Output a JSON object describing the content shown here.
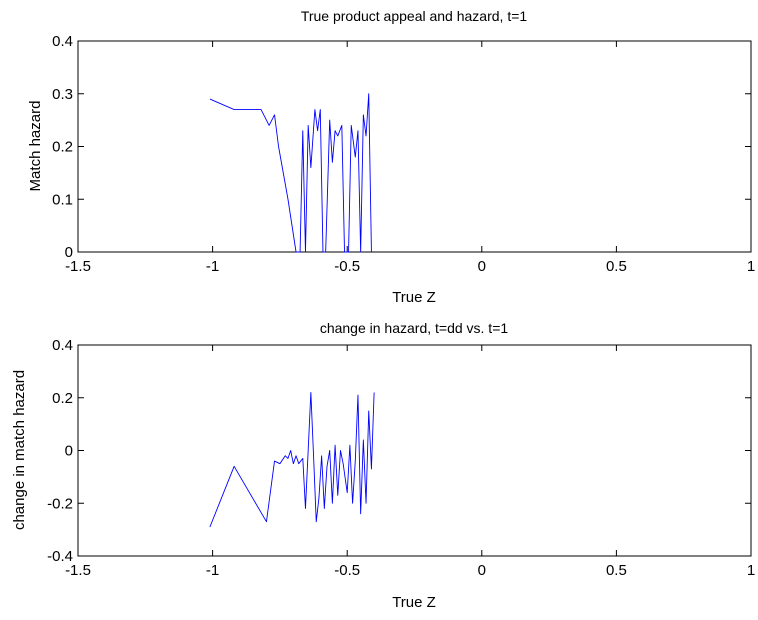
{
  "chart_data": [
    {
      "type": "line",
      "title": "True product appeal and hazard, t=1",
      "xlabel": "True Z",
      "ylabel": "Match hazard",
      "xlim": [
        -1.5,
        1
      ],
      "ylim": [
        0,
        0.4
      ],
      "xticks": [
        "-1.5",
        "-1",
        "-0.5",
        "0",
        "0.5",
        "1"
      ],
      "yticks": [
        "0",
        "0.1",
        "0.2",
        "0.3",
        "0.4"
      ],
      "grid": false,
      "series": [
        {
          "color": "#0000ff",
          "points": [
            [
              -1.01,
              0.29
            ],
            [
              -0.92,
              0.27
            ],
            [
              -0.82,
              0.27
            ],
            [
              -0.79,
              0.24
            ],
            [
              -0.77,
              0.26
            ],
            [
              -0.755,
              0.2
            ],
            [
              -0.72,
              0.1
            ],
            [
              -0.69,
              0.0
            ],
            [
              -0.675,
              0.0
            ],
            [
              -0.665,
              0.23
            ],
            [
              -0.655,
              0.0
            ],
            [
              -0.645,
              0.24
            ],
            [
              -0.635,
              0.16
            ],
            [
              -0.62,
              0.27
            ],
            [
              -0.61,
              0.23
            ],
            [
              -0.6,
              0.27
            ],
            [
              -0.59,
              0.0
            ],
            [
              -0.58,
              0.0
            ],
            [
              -0.565,
              0.25
            ],
            [
              -0.555,
              0.17
            ],
            [
              -0.545,
              0.23
            ],
            [
              -0.535,
              0.22
            ],
            [
              -0.52,
              0.24
            ],
            [
              -0.51,
              0.0
            ],
            [
              -0.495,
              0.0
            ],
            [
              -0.485,
              0.24
            ],
            [
              -0.47,
              0.18
            ],
            [
              -0.46,
              0.23
            ],
            [
              -0.45,
              0.0
            ],
            [
              -0.44,
              0.26
            ],
            [
              -0.43,
              0.22
            ],
            [
              -0.42,
              0.3
            ],
            [
              -0.41,
              0.0
            ]
          ]
        }
      ]
    },
    {
      "type": "line",
      "title": "change in hazard, t=dd vs. t=1",
      "xlabel": "True Z",
      "ylabel": "change in match hazard",
      "xlim": [
        -1.5,
        1
      ],
      "ylim": [
        -0.4,
        0.4
      ],
      "xticks": [
        "-1.5",
        "-1",
        "-0.5",
        "0",
        "0.5",
        "1"
      ],
      "yticks": [
        "-0.4",
        "-0.2",
        "0",
        "0.2",
        "0.4"
      ],
      "grid": false,
      "series": [
        {
          "color": "#0000ff",
          "points": [
            [
              -1.01,
              -0.29
            ],
            [
              -0.92,
              -0.06
            ],
            [
              -0.8,
              -0.27
            ],
            [
              -0.77,
              -0.04
            ],
            [
              -0.75,
              -0.05
            ],
            [
              -0.73,
              -0.02
            ],
            [
              -0.72,
              -0.03
            ],
            [
              -0.71,
              0.0
            ],
            [
              -0.7,
              -0.05
            ],
            [
              -0.69,
              -0.02
            ],
            [
              -0.68,
              -0.05
            ],
            [
              -0.665,
              -0.03
            ],
            [
              -0.655,
              -0.22
            ],
            [
              -0.645,
              0.0
            ],
            [
              -0.635,
              0.22
            ],
            [
              -0.625,
              -0.02
            ],
            [
              -0.615,
              -0.27
            ],
            [
              -0.605,
              -0.18
            ],
            [
              -0.595,
              -0.02
            ],
            [
              -0.585,
              -0.22
            ],
            [
              -0.575,
              -0.06
            ],
            [
              -0.565,
              0.0
            ],
            [
              -0.555,
              -0.2
            ],
            [
              -0.545,
              0.02
            ],
            [
              -0.535,
              -0.17
            ],
            [
              -0.525,
              0.0
            ],
            [
              -0.515,
              -0.05
            ],
            [
              -0.5,
              -0.16
            ],
            [
              -0.49,
              0.02
            ],
            [
              -0.48,
              -0.2
            ],
            [
              -0.47,
              -0.04
            ],
            [
              -0.46,
              0.21
            ],
            [
              -0.45,
              -0.24
            ],
            [
              -0.44,
              0.04
            ],
            [
              -0.43,
              -0.2
            ],
            [
              -0.42,
              0.15
            ],
            [
              -0.41,
              -0.07
            ],
            [
              -0.4,
              0.22
            ]
          ]
        }
      ]
    }
  ]
}
